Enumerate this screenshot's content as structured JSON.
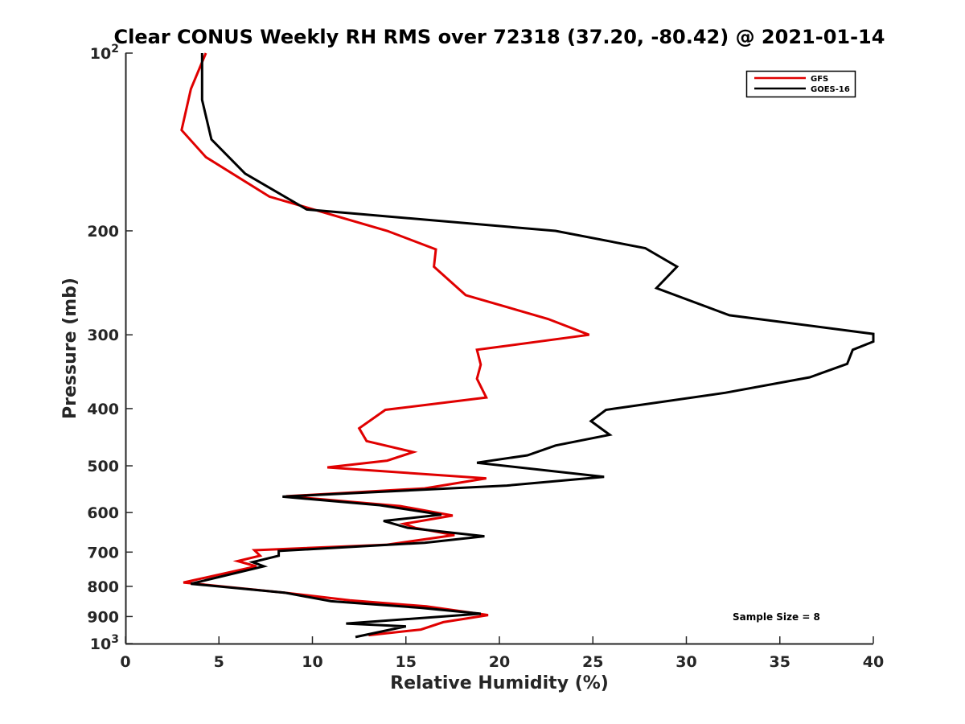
{
  "chart_data": {
    "type": "line",
    "title": "Clear CONUS Weekly RH RMS over 72318 (37.20, -80.42) @ 2021-01-14",
    "xlabel": "Relative Humidity (%)",
    "ylabel": "Pressure (mb)",
    "xlim": [
      0,
      40
    ],
    "ylim": [
      100,
      1000
    ],
    "yscale": "log",
    "y_reversed": true,
    "x_ticks": [
      "0",
      "5",
      "10",
      "15",
      "20",
      "25",
      "30",
      "35",
      "40"
    ],
    "y_ticks": [
      {
        "value": 100,
        "label": "10",
        "sup": "2"
      },
      {
        "value": 200,
        "label": "200",
        "sup": ""
      },
      {
        "value": 300,
        "label": "300",
        "sup": ""
      },
      {
        "value": 400,
        "label": "400",
        "sup": ""
      },
      {
        "value": 500,
        "label": "500",
        "sup": ""
      },
      {
        "value": 600,
        "label": "600",
        "sup": ""
      },
      {
        "value": 700,
        "label": "700",
        "sup": ""
      },
      {
        "value": 800,
        "label": "800",
        "sup": ""
      },
      {
        "value": 900,
        "label": "900",
        "sup": ""
      },
      {
        "value": 1000,
        "label": "10",
        "sup": "3"
      }
    ],
    "legend": {
      "location": "top-right"
    },
    "annotation": "Sample Size = 8",
    "series": [
      {
        "name": "GFS",
        "color": "#e00000",
        "points": [
          [
            4.3,
            100
          ],
          [
            3.5,
            115
          ],
          [
            3.0,
            135
          ],
          [
            4.3,
            150
          ],
          [
            7.7,
            175
          ],
          [
            14,
            200
          ],
          [
            16.6,
            215
          ],
          [
            16.5,
            230
          ],
          [
            18.2,
            257
          ],
          [
            22.6,
            282
          ],
          [
            24.8,
            300
          ],
          [
            18.8,
            318
          ],
          [
            19.0,
            337
          ],
          [
            18.8,
            356
          ],
          [
            19.3,
            383
          ],
          [
            13.9,
            402
          ],
          [
            12.5,
            432
          ],
          [
            12.9,
            454
          ],
          [
            15.4,
            474
          ],
          [
            14.0,
            490
          ],
          [
            10.8,
            503
          ],
          [
            19.3,
            525
          ],
          [
            16.0,
            546
          ],
          [
            8.6,
            563
          ],
          [
            14.7,
            585
          ],
          [
            17.5,
            607
          ],
          [
            14.9,
            627
          ],
          [
            15.5,
            637
          ],
          [
            17.6,
            655
          ],
          [
            14.0,
            680
          ],
          [
            6.9,
            695
          ],
          [
            7.2,
            710
          ],
          [
            6.0,
            725
          ],
          [
            7.0,
            740
          ],
          [
            3.1,
            788
          ],
          [
            8.5,
            820
          ],
          [
            12.0,
            845
          ],
          [
            16.1,
            865
          ],
          [
            19.4,
            895
          ],
          [
            17.0,
            920
          ],
          [
            15.8,
            947
          ],
          [
            13.0,
            968
          ]
        ]
      },
      {
        "name": "GOES-16",
        "color": "#000000",
        "points": [
          [
            4.1,
            100
          ],
          [
            4.1,
            120
          ],
          [
            4.6,
            140
          ],
          [
            6.4,
            160
          ],
          [
            9.7,
            184
          ],
          [
            23,
            200
          ],
          [
            27.8,
            214
          ],
          [
            29.5,
            230
          ],
          [
            28.4,
            250
          ],
          [
            32.3,
            278
          ],
          [
            40,
            299
          ],
          [
            40,
            308
          ],
          [
            38.9,
            318
          ],
          [
            38.6,
            336
          ],
          [
            36.6,
            354
          ],
          [
            32.1,
            376
          ],
          [
            25.7,
            402
          ],
          [
            24.9,
            420
          ],
          [
            25.9,
            443
          ],
          [
            23.0,
            462
          ],
          [
            21.5,
            480
          ],
          [
            18.8,
            494
          ],
          [
            25.6,
            522
          ],
          [
            20.4,
            540
          ],
          [
            8.4,
            564
          ],
          [
            13.6,
            583
          ],
          [
            16.9,
            605
          ],
          [
            13.8,
            620
          ],
          [
            15.1,
            637
          ],
          [
            19.2,
            658
          ],
          [
            16.0,
            675
          ],
          [
            8.2,
            697
          ],
          [
            8.2,
            710
          ],
          [
            6.8,
            728
          ],
          [
            7.4,
            740
          ],
          [
            3.5,
            792
          ],
          [
            8.5,
            820
          ],
          [
            11.0,
            848
          ],
          [
            15.8,
            870
          ],
          [
            19.0,
            890
          ],
          [
            11.8,
            925
          ],
          [
            15.0,
            935
          ],
          [
            12.3,
            975
          ]
        ]
      }
    ]
  }
}
